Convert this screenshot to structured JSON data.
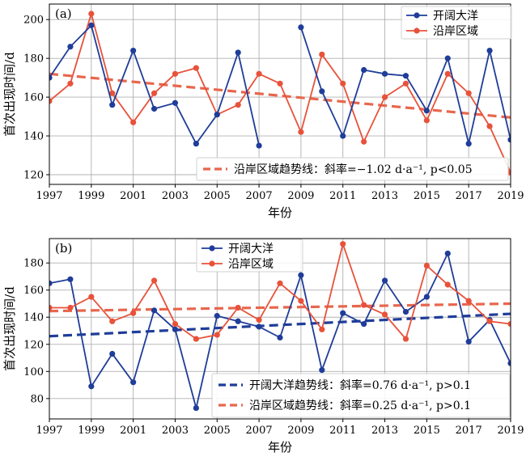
{
  "chart_data": [
    {
      "type": "line",
      "panel_label": "(a)",
      "xlabel": "年份",
      "ylabel": "首次出现时间/d",
      "xlim": [
        1997,
        2019
      ],
      "ylim": [
        115,
        208
      ],
      "x_ticks": [
        1997,
        1999,
        2001,
        2003,
        2005,
        2007,
        2009,
        2011,
        2013,
        2015,
        2017,
        2019
      ],
      "y_ticks": [
        120,
        140,
        160,
        180,
        200
      ],
      "grid": true,
      "legend_position": "top-right",
      "x": [
        1997,
        1998,
        1999,
        2000,
        2001,
        2002,
        2003,
        2004,
        2005,
        2006,
        2007,
        2008,
        2009,
        2010,
        2011,
        2012,
        2013,
        2014,
        2015,
        2016,
        2017,
        2018,
        2019
      ],
      "series": [
        {
          "name": "开阔大洋",
          "color": "#1f3d99",
          "values": [
            170,
            186,
            197,
            156,
            184,
            154,
            157,
            136,
            151,
            183,
            135,
            null,
            196,
            163,
            140,
            174,
            172,
            171,
            153,
            180,
            136,
            184,
            138
          ]
        },
        {
          "name": "沿岸区域",
          "color": "#e8523a",
          "values": [
            158,
            167,
            203,
            162,
            147,
            162,
            172,
            175,
            151,
            156,
            172,
            167,
            142,
            182,
            167,
            137,
            160,
            167,
            148,
            172,
            162,
            145,
            121
          ]
        }
      ],
      "trend_lines": [
        {
          "series": "沿岸区域",
          "color": "#e8664d",
          "start": [
            1997,
            172
          ],
          "end": [
            2019,
            149.5
          ],
          "label": "沿岸区域趋势线：斜率=−1.02 d·a⁻¹, p<0.05"
        }
      ]
    },
    {
      "type": "line",
      "panel_label": "(b)",
      "xlabel": "年份",
      "ylabel": "首次出现时间/d",
      "xlim": [
        1997,
        2019
      ],
      "ylim": [
        65,
        198
      ],
      "x_ticks": [
        1997,
        1999,
        2001,
        2003,
        2005,
        2007,
        2009,
        2011,
        2013,
        2015,
        2017,
        2019
      ],
      "y_ticks": [
        80,
        100,
        120,
        140,
        160,
        180
      ],
      "grid": true,
      "legend_position": "top-center",
      "x": [
        1997,
        1998,
        1999,
        2000,
        2001,
        2002,
        2003,
        2004,
        2005,
        2006,
        2007,
        2008,
        2009,
        2010,
        2011,
        2012,
        2013,
        2014,
        2015,
        2016,
        2017,
        2018,
        2019
      ],
      "series": [
        {
          "name": "开阔大洋",
          "color": "#1f3d99",
          "values": [
            165,
            168,
            89,
            113,
            92,
            145,
            131,
            73,
            141,
            137,
            133,
            125,
            171,
            101,
            143,
            135,
            167,
            144,
            155,
            187,
            122,
            138,
            106
          ]
        },
        {
          "name": "沿岸区域",
          "color": "#e8523a",
          "values": [
            147,
            147,
            155,
            137,
            143,
            167,
            135,
            124,
            127,
            147,
            138,
            165,
            152,
            131,
            194,
            149,
            142,
            124,
            178,
            164,
            152,
            137,
            135
          ]
        }
      ],
      "trend_lines": [
        {
          "series": "开阔大洋",
          "color": "#1f3d99",
          "start": [
            1997,
            126
          ],
          "end": [
            2019,
            142.5
          ],
          "label": "开阔大洋趋势线：斜率=0.76 d·a⁻¹, p>0.1"
        },
        {
          "series": "沿岸区域",
          "color": "#e8664d",
          "start": [
            1997,
            144.5
          ],
          "end": [
            2019,
            150
          ],
          "label": "沿岸区域趋势线：斜率=0.25 d·a⁻¹, p>0.1"
        }
      ]
    }
  ]
}
